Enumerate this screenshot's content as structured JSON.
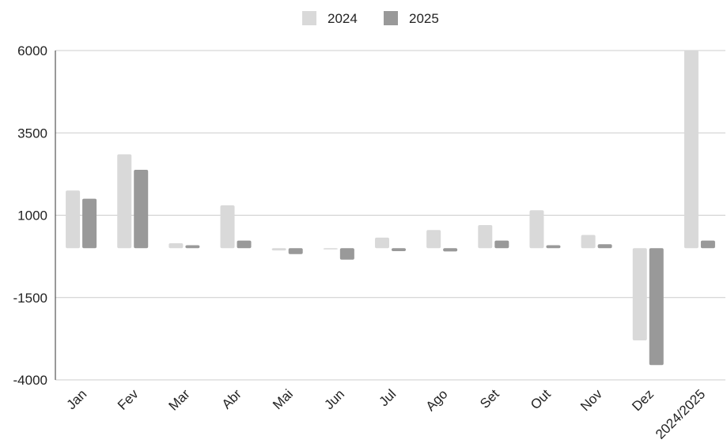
{
  "chart_data": {
    "type": "bar",
    "title": "",
    "xlabel": "",
    "ylabel": "",
    "categories": [
      "Jan",
      "Fev",
      "Mar",
      "Abr",
      "Mai",
      "Jun",
      "Jul",
      "Ago",
      "Set",
      "Out",
      "Nov",
      "Dez",
      "2024/2025"
    ],
    "series": [
      {
        "name": "2024",
        "color": "#d9d9d9",
        "values": [
          1750,
          2850,
          150,
          1300,
          -70,
          -20,
          320,
          550,
          700,
          1150,
          400,
          -2800,
          6000
        ]
      },
      {
        "name": "2025",
        "color": "#999999",
        "values": [
          1500,
          2380,
          90,
          230,
          -180,
          -350,
          -90,
          -100,
          230,
          90,
          120,
          -3550,
          230
        ]
      }
    ],
    "ylim": [
      -4000,
      6000
    ],
    "yticks": [
      6000,
      3500,
      1000,
      -1500,
      -4000
    ],
    "grid": true,
    "legend_position": "top-center"
  }
}
